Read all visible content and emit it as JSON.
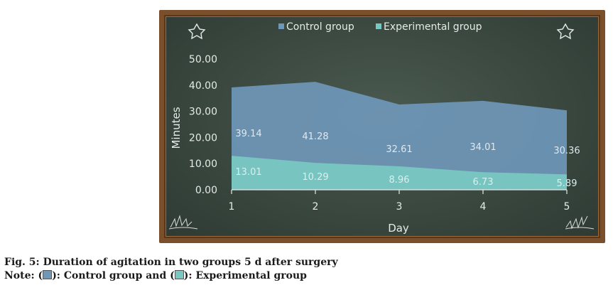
{
  "chart_data": {
    "type": "area",
    "x": [
      1,
      2,
      3,
      4,
      5
    ],
    "xlabel": "Day",
    "ylabel": "Minutes",
    "ylim": [
      0,
      50
    ],
    "yticks": [
      "0.00",
      "10.00",
      "20.00",
      "30.00",
      "40.00",
      "50.00"
    ],
    "xticks": [
      "1",
      "2",
      "3",
      "4",
      "5"
    ],
    "legend_position": "top-center",
    "grid": false,
    "series": [
      {
        "name": "Control group",
        "values": [
          39.14,
          41.28,
          32.61,
          34.01,
          30.36
        ],
        "labels": [
          "39.14",
          "41.28",
          "32.61",
          "34.01",
          "30.36"
        ],
        "color": "#6f97b8"
      },
      {
        "name": "Experimental group",
        "values": [
          13.01,
          10.29,
          8.96,
          6.73,
          5.89
        ],
        "labels": [
          "13.01",
          "10.29",
          "8.96",
          "6.73",
          "5.89"
        ],
        "color": "#79c7c2"
      }
    ]
  },
  "caption": {
    "title": "Fig. 5: Duration of agitation in two groups 5 d after surgery",
    "note_prefix": "Note: (",
    "note_mid1": "): Control group and (",
    "note_end": "): Experimental group"
  },
  "colors": {
    "control": "#6f97b8",
    "experimental": "#79c7c2",
    "chalk": "#e6ebe8"
  }
}
